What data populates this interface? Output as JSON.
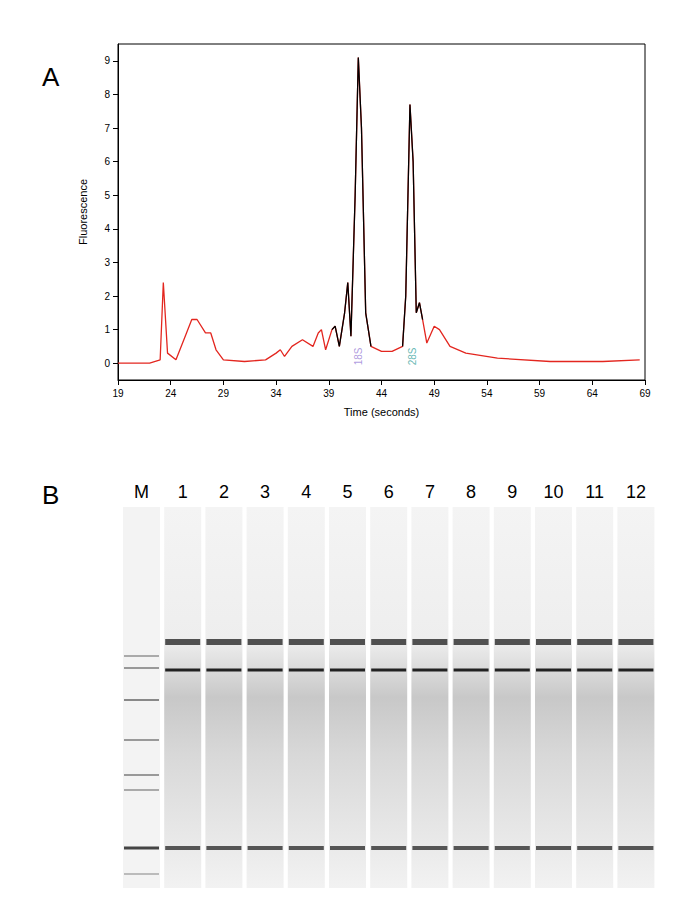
{
  "chart_data": {
    "type": "line",
    "x_label": "Time (seconds)",
    "y_label": "Fluorescence",
    "xlim": [
      19,
      69
    ],
    "xticks": [
      19,
      24,
      29,
      34,
      39,
      44,
      49,
      54,
      59,
      64,
      69
    ],
    "ylim": [
      -0.5,
      9.5
    ],
    "yticks": [
      0,
      1,
      2,
      3,
      4,
      5,
      6,
      7,
      8,
      9
    ],
    "grid": false,
    "x": [
      19,
      22,
      23,
      23.3,
      23.7,
      24.5,
      25.5,
      26,
      26.5,
      27.3,
      27.8,
      28.3,
      29,
      31,
      33,
      34,
      34.4,
      34.8,
      35.5,
      36.5,
      37.5,
      38,
      38.3,
      38.7,
      39.3,
      39.6,
      40,
      40.5,
      40.8,
      41.1,
      41.5,
      41.8,
      42.1,
      42.5,
      43,
      44,
      45,
      46,
      46.3,
      46.7,
      47,
      47.3,
      47.6,
      47.9,
      48.3,
      49,
      49.5,
      50.5,
      52,
      55,
      60,
      65,
      68.5
    ],
    "series": [
      {
        "color": "#e3261f",
        "values": [
          0,
          0,
          0.1,
          2.4,
          0.3,
          0.1,
          0.9,
          1.3,
          1.3,
          0.9,
          0.9,
          0.4,
          0.1,
          0.05,
          0.1,
          0.3,
          0.4,
          0.2,
          0.5,
          0.7,
          0.5,
          0.9,
          1.0,
          0.4,
          1.0,
          1.1,
          0.5,
          1.5,
          2.4,
          0.8,
          5,
          9.1,
          7,
          1.5,
          0.5,
          0.35,
          0.35,
          0.5,
          2,
          7.7,
          6,
          1.5,
          1.8,
          1.3,
          0.6,
          1.1,
          1.0,
          0.5,
          0.3,
          0.15,
          0.05,
          0.05,
          0.1
        ]
      },
      {
        "color": "#000000",
        "values": [
          null,
          null,
          null,
          null,
          null,
          null,
          null,
          null,
          null,
          null,
          null,
          null,
          null,
          null,
          null,
          null,
          null,
          null,
          null,
          null,
          null,
          null,
          null,
          null,
          1.0,
          1.1,
          0.5,
          1.5,
          2.4,
          0.8,
          5,
          9.1,
          7,
          1.5,
          0.5,
          null,
          null,
          0.5,
          2,
          7.7,
          6,
          1.5,
          1.8,
          1.3,
          null,
          null,
          null,
          null,
          null,
          null,
          null,
          null,
          null
        ]
      }
    ],
    "annotations": [
      {
        "text": "18S",
        "x": 41.8,
        "y": 0.2,
        "color": "#9b7fd6"
      },
      {
        "text": "28S",
        "x": 46.9,
        "y": 0.2,
        "color": "#3aa5a0"
      }
    ]
  },
  "panel_labels": [
    "A",
    "B"
  ],
  "gel": {
    "lanes": [
      "M",
      "1",
      "2",
      "3",
      "4",
      "5",
      "6",
      "7",
      "8",
      "9",
      "10",
      "11",
      "12"
    ]
  }
}
